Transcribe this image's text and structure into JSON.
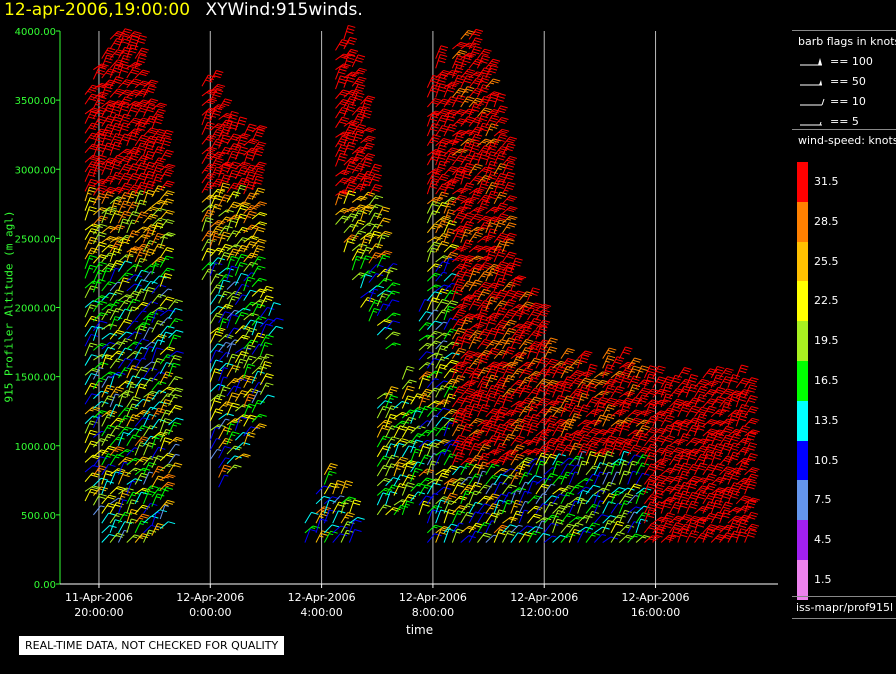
{
  "title": {
    "timestamp": "12-apr-2006,19:00:00",
    "dataset": "XYWind:915winds."
  },
  "footer": {
    "qc_note": "REAL-TIME DATA, NOT CHECKED FOR QUALITY",
    "source": "iss-mapr/prof915l"
  },
  "chart_data": {
    "type": "wind-barb time-height",
    "title": "",
    "xlabel": "time",
    "ylabel": "915 Profiler Altitude (m agl)",
    "ylim": [
      0,
      4000
    ],
    "yticks": [
      "0.00",
      "500.00",
      "1000.00",
      "1500.00",
      "2000.00",
      "2500.00",
      "3000.00",
      "3500.00",
      "4000.00"
    ],
    "xticks": [
      {
        "date": "11-Apr-2006",
        "time": "20:00:00",
        "hour": 20
      },
      {
        "date": "12-Apr-2006",
        "time": "0:00:00",
        "hour": 24
      },
      {
        "date": "12-Apr-2006",
        "time": "4:00:00",
        "hour": 28
      },
      {
        "date": "12-Apr-2006",
        "time": "8:00:00",
        "hour": 32
      },
      {
        "date": "12-Apr-2006",
        "time": "12:00:00",
        "hour": 36
      },
      {
        "date": "12-Apr-2006",
        "time": "16:00:00",
        "hour": 40
      }
    ],
    "grid": "vertical",
    "barb_legend": {
      "title": "barb flags in knots",
      "items": [
        "== 100",
        "== 50",
        "== 10",
        "== 5"
      ]
    },
    "speed_legend": {
      "title": "wind-speed: knots",
      "levels": [
        {
          "label": "31.5",
          "color": "#ff0000"
        },
        {
          "label": "28.5",
          "color": "#ff8000"
        },
        {
          "label": "25.5",
          "color": "#ffc000"
        },
        {
          "label": "22.5",
          "color": "#ffff00"
        },
        {
          "label": "19.5",
          "color": "#a8f020"
        },
        {
          "label": "16.5",
          "color": "#00ff00"
        },
        {
          "label": "13.5",
          "color": "#00ffff"
        },
        {
          "label": "10.5",
          "color": "#0000ff"
        },
        {
          "label": "7.5",
          "color": "#6495ed"
        },
        {
          "label": "4.5",
          "color": "#a020f0"
        },
        {
          "label": "1.5",
          "color": "#ee82ee"
        }
      ]
    },
    "profiles": [
      {
        "hour": 19.5,
        "bottom": 600,
        "top": 3600
      },
      {
        "hour": 19.8,
        "bottom": 500,
        "top": 3750
      },
      {
        "hour": 20.1,
        "bottom": 300,
        "top": 3850
      },
      {
        "hour": 20.4,
        "bottom": 300,
        "top": 3950
      },
      {
        "hour": 20.7,
        "bottom": 300,
        "top": 3950
      },
      {
        "hour": 21.0,
        "bottom": 300,
        "top": 3950
      },
      {
        "hour": 21.3,
        "bottom": 300,
        "top": 3900
      },
      {
        "hour": 21.6,
        "bottom": 300,
        "top": 3600
      },
      {
        "hour": 21.9,
        "bottom": 350,
        "top": 3450
      },
      {
        "hour": 22.2,
        "bottom": 400,
        "top": 3250
      },
      {
        "hour": 22.5,
        "bottom": 800,
        "top": 2000
      },
      {
        "hour": 23.7,
        "bottom": 2200,
        "top": 3600
      },
      {
        "hour": 24.0,
        "bottom": 900,
        "top": 3650
      },
      {
        "hour": 24.3,
        "bottom": 700,
        "top": 3450
      },
      {
        "hour": 24.6,
        "bottom": 800,
        "top": 3350
      },
      {
        "hour": 24.9,
        "bottom": 900,
        "top": 3300
      },
      {
        "hour": 25.2,
        "bottom": 1000,
        "top": 3300
      },
      {
        "hour": 25.5,
        "bottom": 1100,
        "top": 3300
      },
      {
        "hour": 25.8,
        "bottom": 1300,
        "top": 2100
      },
      {
        "hour": 26.1,
        "bottom": 1800,
        "top": 2000
      },
      {
        "hour": 27.4,
        "bottom": 300,
        "top": 500
      },
      {
        "hour": 27.8,
        "bottom": 300,
        "top": 650
      },
      {
        "hour": 28.1,
        "bottom": 300,
        "top": 800
      },
      {
        "hour": 28.4,
        "bottom": 300,
        "top": 700
      },
      {
        "hour": 28.7,
        "bottom": 300,
        "top": 650
      },
      {
        "hour": 29.0,
        "bottom": 300,
        "top": 550
      },
      {
        "hour": 28.5,
        "bottom": 2600,
        "top": 3900
      },
      {
        "hour": 28.8,
        "bottom": 2400,
        "top": 4000
      },
      {
        "hour": 29.1,
        "bottom": 2200,
        "top": 3750
      },
      {
        "hour": 29.4,
        "bottom": 2000,
        "top": 3500
      },
      {
        "hour": 29.7,
        "bottom": 1900,
        "top": 3000
      },
      {
        "hour": 30.0,
        "bottom": 1800,
        "top": 2700
      },
      {
        "hour": 30.3,
        "bottom": 1700,
        "top": 2300
      },
      {
        "hour": 30.0,
        "bottom": 500,
        "top": 1400
      },
      {
        "hour": 30.3,
        "bottom": 500,
        "top": 1400
      },
      {
        "hour": 30.6,
        "bottom": 500,
        "top": 1300
      },
      {
        "hour": 30.9,
        "bottom": 500,
        "top": 1500
      },
      {
        "hour": 31.2,
        "bottom": 600,
        "top": 1300
      },
      {
        "hour": 31.5,
        "bottom": 500,
        "top": 2000
      },
      {
        "hour": 31.8,
        "bottom": 300,
        "top": 3600
      },
      {
        "hour": 32.1,
        "bottom": 300,
        "top": 3800
      },
      {
        "hour": 32.4,
        "bottom": 300,
        "top": 3700
      },
      {
        "hour": 32.7,
        "bottom": 300,
        "top": 3900
      },
      {
        "hour": 33.0,
        "bottom": 300,
        "top": 4000
      },
      {
        "hour": 33.3,
        "bottom": 300,
        "top": 3950
      },
      {
        "hour": 33.6,
        "bottom": 300,
        "top": 3850
      },
      {
        "hour": 33.9,
        "bottom": 300,
        "top": 3750
      },
      {
        "hour": 34.2,
        "bottom": 300,
        "top": 3450
      },
      {
        "hour": 34.5,
        "bottom": 300,
        "top": 3200
      },
      {
        "hour": 34.8,
        "bottom": 300,
        "top": 2300
      },
      {
        "hour": 35.1,
        "bottom": 300,
        "top": 2050
      },
      {
        "hour": 35.4,
        "bottom": 300,
        "top": 2050
      },
      {
        "hour": 35.7,
        "bottom": 300,
        "top": 2000
      },
      {
        "hour": 36.0,
        "bottom": 300,
        "top": 1700
      },
      {
        "hour": 36.3,
        "bottom": 300,
        "top": 1600
      },
      {
        "hour": 36.6,
        "bottom": 300,
        "top": 1650
      },
      {
        "hour": 36.9,
        "bottom": 300,
        "top": 1600
      },
      {
        "hour": 37.2,
        "bottom": 300,
        "top": 1650
      },
      {
        "hour": 37.5,
        "bottom": 300,
        "top": 1550
      },
      {
        "hour": 37.8,
        "bottom": 300,
        "top": 1500
      },
      {
        "hour": 38.1,
        "bottom": 300,
        "top": 1650
      },
      {
        "hour": 38.4,
        "bottom": 300,
        "top": 1600
      },
      {
        "hour": 38.7,
        "bottom": 300,
        "top": 1650
      },
      {
        "hour": 39.0,
        "bottom": 300,
        "top": 1600
      },
      {
        "hour": 39.3,
        "bottom": 300,
        "top": 1500
      },
      {
        "hour": 39.6,
        "bottom": 300,
        "top": 1550
      },
      {
        "hour": 39.9,
        "bottom": 300,
        "top": 1500
      },
      {
        "hour": 40.2,
        "bottom": 300,
        "top": 1450
      },
      {
        "hour": 40.5,
        "bottom": 300,
        "top": 1450
      },
      {
        "hour": 40.8,
        "bottom": 300,
        "top": 1500
      },
      {
        "hour": 41.1,
        "bottom": 300,
        "top": 1450
      },
      {
        "hour": 41.4,
        "bottom": 300,
        "top": 1450
      },
      {
        "hour": 41.7,
        "bottom": 300,
        "top": 1500
      },
      {
        "hour": 42.0,
        "bottom": 300,
        "top": 1550
      },
      {
        "hour": 42.3,
        "bottom": 300,
        "top": 1500
      },
      {
        "hour": 42.6,
        "bottom": 300,
        "top": 1450
      },
      {
        "hour": 42.9,
        "bottom": 300,
        "top": 1550
      },
      {
        "hour": 43.2,
        "bottom": 300,
        "top": 1450
      }
    ]
  }
}
